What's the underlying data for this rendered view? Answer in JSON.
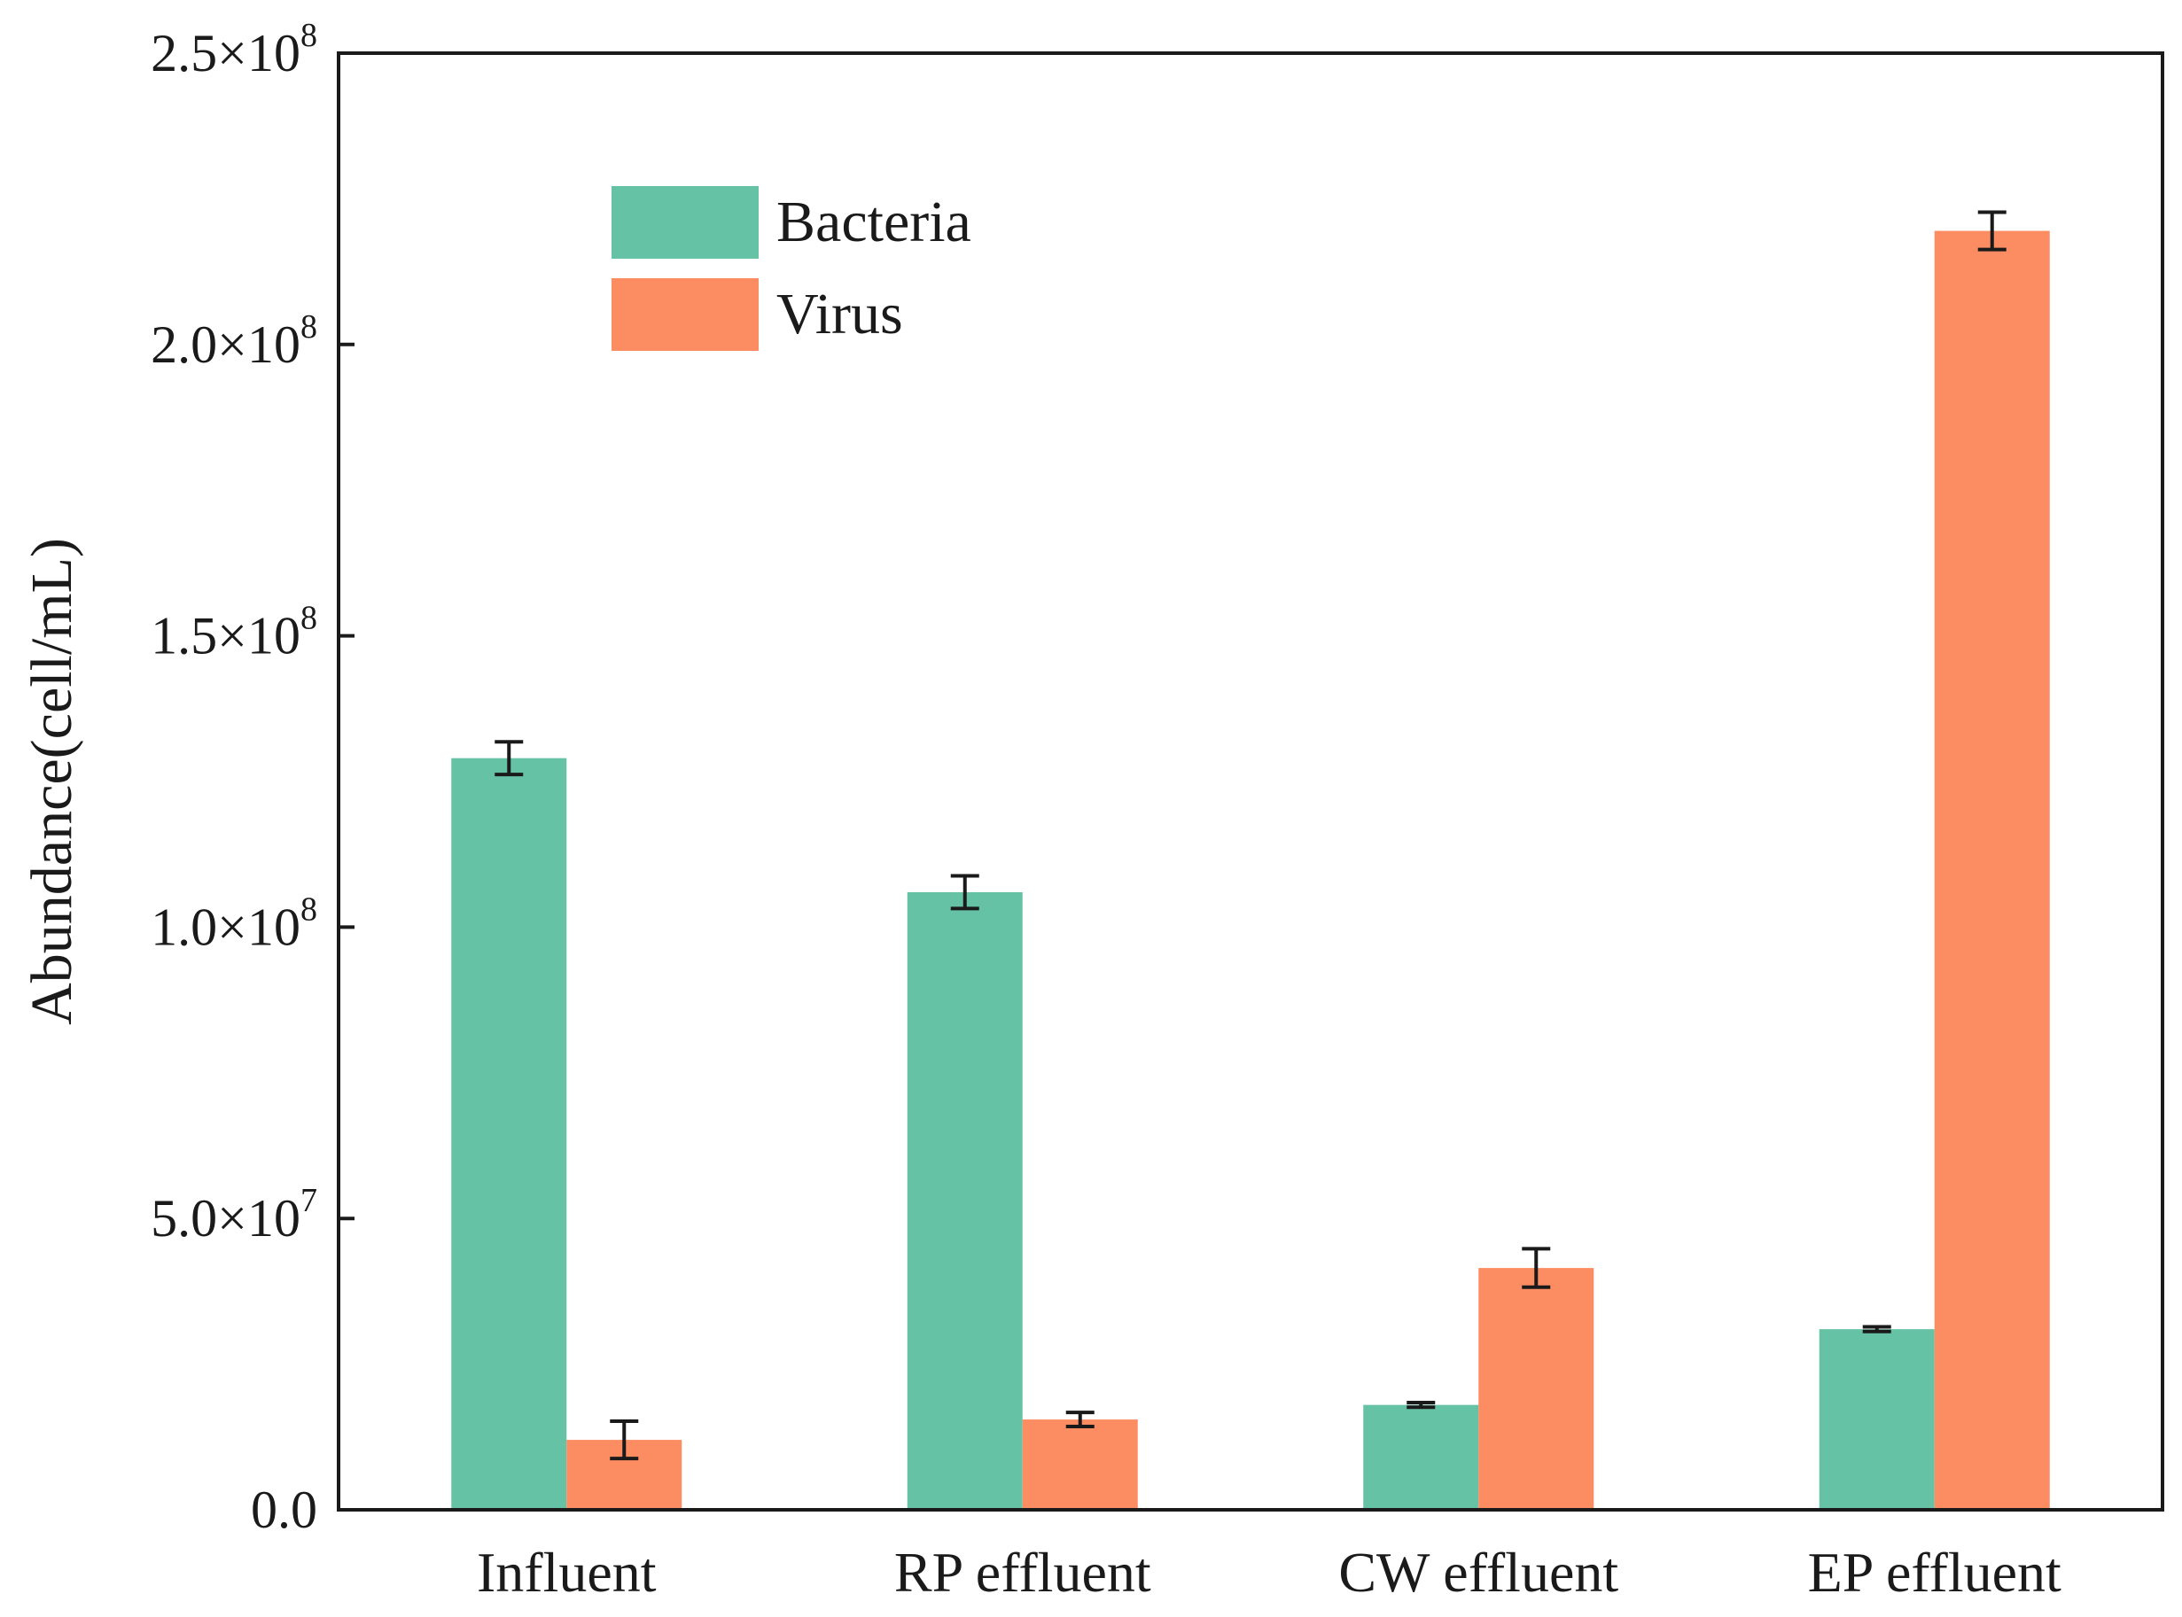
{
  "chart_data": {
    "type": "bar",
    "categories": [
      "Influent",
      "RP effluent",
      "CW effluent",
      "EP effluent"
    ],
    "series": [
      {
        "name": "Bacteria",
        "color": "#66c2a5",
        "values": [
          129000000,
          106000000,
          18000000,
          31000000
        ],
        "errors": [
          2800000,
          2800000,
          400000,
          400000
        ]
      },
      {
        "name": "Virus",
        "color": "#fc8d62",
        "values": [
          12000000,
          15500000,
          41500000,
          219500000
        ],
        "errors": [
          3200000,
          1200000,
          3300000,
          3200000
        ]
      }
    ],
    "ylabel": "Abundance(cell/mL)",
    "xlabel": "",
    "ylim": [
      0,
      250000000
    ],
    "yticks": [
      {
        "mantissa": "0.0",
        "exp": ""
      },
      {
        "mantissa": "5.0×10",
        "exp": "7"
      },
      {
        "mantissa": "1.0×10",
        "exp": "8"
      },
      {
        "mantissa": "1.5×10",
        "exp": "8"
      },
      {
        "mantissa": "2.0×10",
        "exp": "8"
      },
      {
        "mantissa": "2.5×10",
        "exp": "8"
      }
    ],
    "legend_position": "top-left",
    "grid": false
  }
}
